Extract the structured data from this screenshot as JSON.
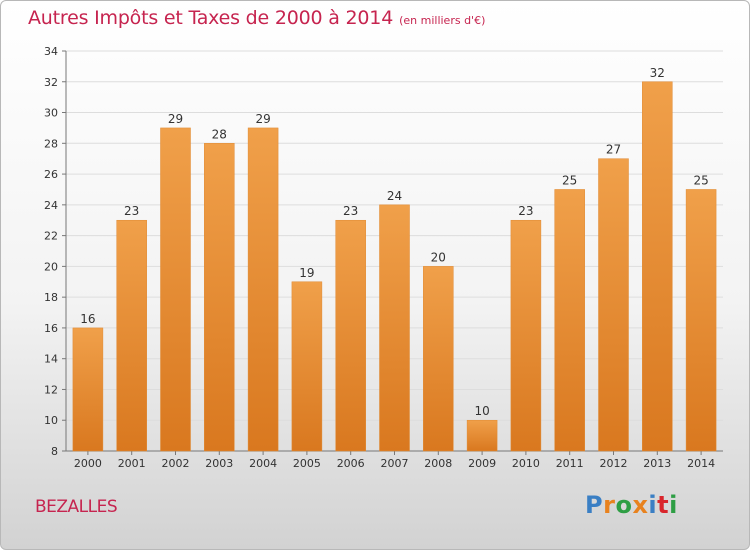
{
  "header": {
    "title": "Autres Impôts et Taxes de 2000 à 2014",
    "subtitle": "(en milliers d'€)"
  },
  "commune": "BEZALLES",
  "logo": {
    "text": "Proxiti",
    "letter_colors": [
      "#3a7fc4",
      "#e8821e",
      "#2e9e44",
      "#e8821e",
      "#3a7fc4",
      "#d9262c",
      "#2e9e44"
    ]
  },
  "colors": {
    "bar": "#f0a04a",
    "bar_dark": "#d9781f",
    "title": "#c6244f"
  },
  "chart_data": {
    "type": "bar",
    "categories": [
      "2000",
      "2001",
      "2002",
      "2003",
      "2004",
      "2005",
      "2006",
      "2007",
      "2008",
      "2009",
      "2010",
      "2011",
      "2012",
      "2013",
      "2014"
    ],
    "values": [
      16,
      23,
      29,
      28,
      29,
      19,
      23,
      24,
      20,
      10,
      23,
      25,
      27,
      32,
      25
    ],
    "ylim": [
      8,
      34
    ],
    "yticks": [
      8,
      10,
      12,
      14,
      16,
      18,
      20,
      22,
      24,
      26,
      28,
      30,
      32,
      34
    ],
    "grid": true,
    "data_labels": true
  }
}
